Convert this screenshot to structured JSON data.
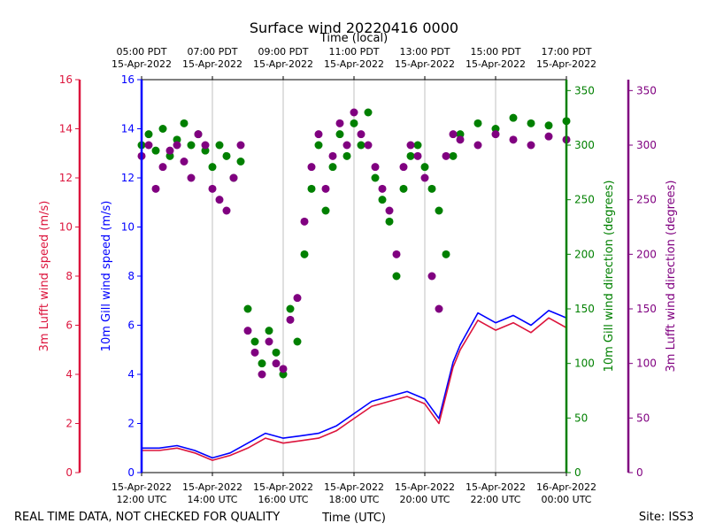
{
  "chart_data": {
    "type": "scatter",
    "title": "Surface wind 20220416 0000",
    "top_axis_label": "Time (local)",
    "xlabel": "Time (UTC)",
    "footer_left": "REAL TIME DATA, NOT CHECKED FOR QUALITY",
    "footer_right": "Site: ISS3",
    "x_range_hours_utc": [
      12,
      24
    ],
    "bottom_ticks": [
      {
        "h": 12,
        "line1": "15-Apr-2022",
        "line2": "12:00 UTC"
      },
      {
        "h": 14,
        "line1": "15-Apr-2022",
        "line2": "14:00 UTC"
      },
      {
        "h": 16,
        "line1": "15-Apr-2022",
        "line2": "16:00 UTC"
      },
      {
        "h": 18,
        "line1": "15-Apr-2022",
        "line2": "18:00 UTC"
      },
      {
        "h": 20,
        "line1": "15-Apr-2022",
        "line2": "20:00 UTC"
      },
      {
        "h": 22,
        "line1": "15-Apr-2022",
        "line2": "22:00 UTC"
      },
      {
        "h": 24,
        "line1": "16-Apr-2022",
        "line2": "00:00 UTC"
      }
    ],
    "top_ticks": [
      {
        "h": 12,
        "line1": "05:00 PDT",
        "line2": "15-Apr-2022"
      },
      {
        "h": 14,
        "line1": "07:00 PDT",
        "line2": "15-Apr-2022"
      },
      {
        "h": 16,
        "line1": "09:00 PDT",
        "line2": "15-Apr-2022"
      },
      {
        "h": 18,
        "line1": "11:00 PDT",
        "line2": "15-Apr-2022"
      },
      {
        "h": 20,
        "line1": "13:00 PDT",
        "line2": "15-Apr-2022"
      },
      {
        "h": 22,
        "line1": "15:00 PDT",
        "line2": "15-Apr-2022"
      },
      {
        "h": 24,
        "line1": "17:00 PDT",
        "line2": "15-Apr-2022"
      }
    ],
    "axes": {
      "lufft_speed": {
        "label": "3m Lufft wind speed (m/s)",
        "color": "#dc143c",
        "ylim": [
          0,
          16
        ],
        "ticks": [
          0,
          2,
          4,
          6,
          8,
          10,
          12,
          14,
          16
        ]
      },
      "gill_speed": {
        "label": "10m Gill wind speed (m/s)",
        "color": "#0000ff",
        "ylim": [
          0,
          16
        ],
        "ticks": [
          0,
          2,
          4,
          6,
          8,
          10,
          12,
          14,
          16
        ]
      },
      "gill_dir": {
        "label": "10m Gill wind direction (degrees)",
        "color": "#008000",
        "ylim": [
          0,
          360
        ],
        "ticks": [
          0,
          50,
          100,
          150,
          200,
          250,
          300,
          350
        ]
      },
      "lufft_dir": {
        "label": "3m Lufft wind direction (degrees)",
        "color": "#800080",
        "ylim": [
          0,
          360
        ],
        "ticks": [
          0,
          50,
          100,
          150,
          200,
          250,
          300,
          350
        ]
      }
    },
    "series": [
      {
        "name": "10m Gill wind speed",
        "kind": "line",
        "axis": "gill_speed",
        "color": "#0000ff",
        "x": [
          12.0,
          12.5,
          13.0,
          13.5,
          14.0,
          14.5,
          15.0,
          15.5,
          16.0,
          16.5,
          17.0,
          17.5,
          18.0,
          18.5,
          19.0,
          19.5,
          20.0,
          20.4,
          20.8,
          21.0,
          21.5,
          22.0,
          22.5,
          23.0,
          23.5,
          24.0
        ],
        "y": [
          1.0,
          1.0,
          1.1,
          0.9,
          0.6,
          0.8,
          1.2,
          1.6,
          1.4,
          1.5,
          1.6,
          1.9,
          2.4,
          2.9,
          3.1,
          3.3,
          3.0,
          2.2,
          4.5,
          5.2,
          6.5,
          6.1,
          6.4,
          6.0,
          6.6,
          6.3
        ]
      },
      {
        "name": "3m Lufft wind speed",
        "kind": "line",
        "axis": "lufft_speed",
        "color": "#dc143c",
        "x": [
          12.0,
          12.5,
          13.0,
          13.5,
          14.0,
          14.5,
          15.0,
          15.5,
          16.0,
          16.5,
          17.0,
          17.5,
          18.0,
          18.5,
          19.0,
          19.5,
          20.0,
          20.4,
          20.8,
          21.0,
          21.5,
          22.0,
          22.5,
          23.0,
          23.5,
          24.0
        ],
        "y": [
          0.9,
          0.9,
          1.0,
          0.8,
          0.5,
          0.7,
          1.0,
          1.4,
          1.2,
          1.3,
          1.4,
          1.7,
          2.2,
          2.7,
          2.9,
          3.1,
          2.8,
          2.0,
          4.3,
          5.0,
          6.2,
          5.8,
          6.1,
          5.7,
          6.3,
          5.9
        ]
      },
      {
        "name": "10m Gill wind direction",
        "kind": "scatter",
        "axis": "gill_dir",
        "color": "#008000",
        "x": [
          12.0,
          12.2,
          12.4,
          12.6,
          12.8,
          13.0,
          13.2,
          13.4,
          13.6,
          13.8,
          14.0,
          14.2,
          14.4,
          14.6,
          14.8,
          15.0,
          15.2,
          15.4,
          15.6,
          15.8,
          16.0,
          16.2,
          16.4,
          16.6,
          16.8,
          17.0,
          17.2,
          17.4,
          17.6,
          17.8,
          18.0,
          18.2,
          18.4,
          18.6,
          18.8,
          19.0,
          19.2,
          19.4,
          19.6,
          19.8,
          20.0,
          20.2,
          20.4,
          20.6,
          20.8,
          21.0,
          21.5,
          22.0,
          22.5,
          23.0,
          23.5,
          24.0
        ],
        "y": [
          300,
          310,
          295,
          315,
          290,
          305,
          320,
          300,
          310,
          295,
          280,
          300,
          290,
          270,
          285,
          150,
          120,
          100,
          130,
          110,
          90,
          150,
          120,
          200,
          260,
          300,
          240,
          280,
          310,
          290,
          320,
          300,
          330,
          270,
          250,
          230,
          180,
          260,
          290,
          300,
          280,
          260,
          240,
          200,
          290,
          310,
          320,
          315,
          325,
          320,
          318,
          322
        ]
      },
      {
        "name": "3m Lufft wind direction",
        "kind": "scatter",
        "axis": "lufft_dir",
        "color": "#800080",
        "x": [
          12.0,
          12.2,
          12.4,
          12.6,
          12.8,
          13.0,
          13.2,
          13.4,
          13.6,
          13.8,
          14.0,
          14.2,
          14.4,
          14.6,
          14.8,
          15.0,
          15.2,
          15.4,
          15.6,
          15.8,
          16.0,
          16.2,
          16.4,
          16.6,
          16.8,
          17.0,
          17.2,
          17.4,
          17.6,
          17.8,
          18.0,
          18.2,
          18.4,
          18.6,
          18.8,
          19.0,
          19.2,
          19.4,
          19.6,
          19.8,
          20.0,
          20.2,
          20.4,
          20.6,
          20.8,
          21.0,
          21.5,
          22.0,
          22.5,
          23.0,
          23.5,
          24.0
        ],
        "y": [
          290,
          300,
          260,
          280,
          295,
          300,
          285,
          270,
          310,
          300,
          260,
          250,
          240,
          270,
          300,
          130,
          110,
          90,
          120,
          100,
          95,
          140,
          160,
          230,
          280,
          310,
          260,
          290,
          320,
          300,
          330,
          310,
          300,
          280,
          260,
          240,
          200,
          280,
          300,
          290,
          270,
          180,
          150,
          290,
          310,
          305,
          300,
          310,
          305,
          300,
          308,
          305
        ]
      }
    ]
  }
}
